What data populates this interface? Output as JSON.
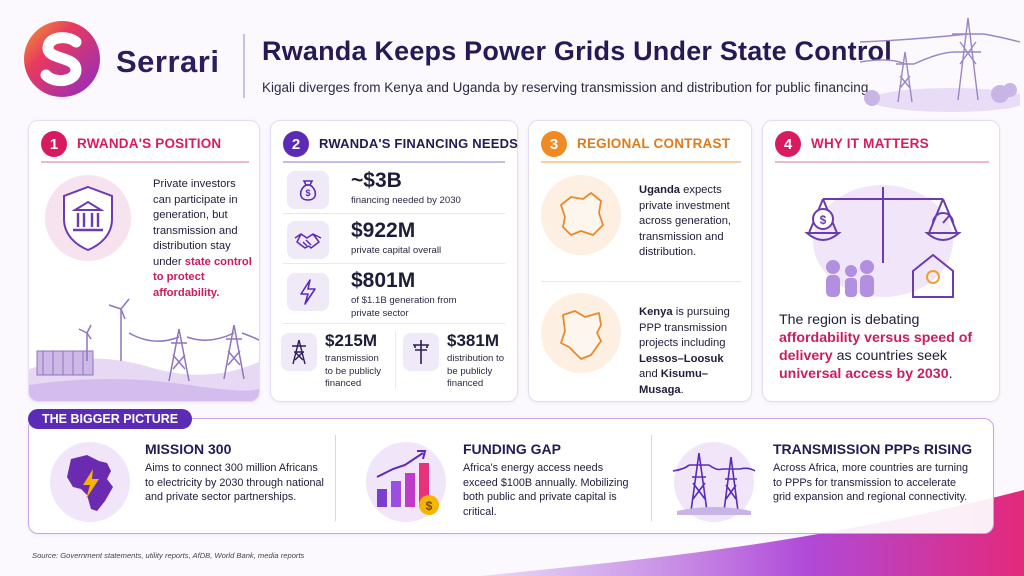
{
  "brand": {
    "name": "Serrari"
  },
  "header": {
    "title": "Rwanda Keeps Power Grids Under State Control",
    "subtitle": "Kigali diverges from Kenya and Uganda by reserving transmission and distribution for public financing."
  },
  "colors": {
    "magenta": "#d81b60",
    "purple": "#5b2bb5",
    "orange": "#f08a24",
    "navy": "#241b54"
  },
  "cards": [
    {
      "number": "1",
      "title": "RWANDA'S POSITION",
      "icon": "government-building-icon",
      "text_before": "Private investors can participate in generation, but transmission and distribution stay under ",
      "highlight": "state control to protect affordability."
    },
    {
      "number": "2",
      "title": "RWANDA'S FINANCING NEEDS",
      "items": [
        {
          "value": "~$3B",
          "label": "financing needed by 2030",
          "icon": "money-bag-icon"
        },
        {
          "value": "$922M",
          "label": "private capital overall",
          "icon": "handshake-icon"
        },
        {
          "value": "$801M",
          "label": "of $1.1B generation from private sector",
          "icon": "lightning-icon"
        }
      ],
      "split": [
        {
          "value": "$215M",
          "label": "transmission to be publicly financed",
          "icon": "transmission-tower-icon"
        },
        {
          "value": "$381M",
          "label": "distribution to be publicly financed",
          "icon": "utility-pole-icon"
        }
      ]
    },
    {
      "number": "3",
      "title": "REGIONAL CONTRAST",
      "uganda": {
        "name": "Uganda",
        "rest": " expects private investment across generation, transmission and distribution."
      },
      "kenya": {
        "name": "Kenya",
        "rest": " is pursuing PPP transmission projects including ",
        "p1": "Lessos–Loosuk",
        "and": " and ",
        "p2": "Kisumu–Musaga",
        "end": "."
      }
    },
    {
      "number": "4",
      "title": "WHY IT MATTERS",
      "t1": "The region is debating ",
      "h1": "affordability versus speed of delivery",
      "t2": " as countries seek ",
      "h2": "universal access by 2030",
      "t3": "."
    }
  ],
  "bigger_picture": {
    "badge": "THE BIGGER PICTURE",
    "items": [
      {
        "title": "MISSION 300",
        "text": "Aims to connect 300 million Africans to electricity by 2030 through national and private sector partnerships.",
        "icon": "africa-lightning-icon"
      },
      {
        "title": "FUNDING GAP",
        "text": "Africa's energy access needs exceed $100B annually. Mobilizing both public and private capital is critical.",
        "icon": "growth-chart-coin-icon"
      },
      {
        "title": "TRANSMISSION PPPs RISING",
        "text": "Across Africa, more countries are turning to PPPs for transmission to accelerate grid expansion and regional connectivity.",
        "icon": "transmission-towers-icon"
      }
    ]
  },
  "source": "Source: Government statements, utility reports, AfDB, World Bank, media reports"
}
